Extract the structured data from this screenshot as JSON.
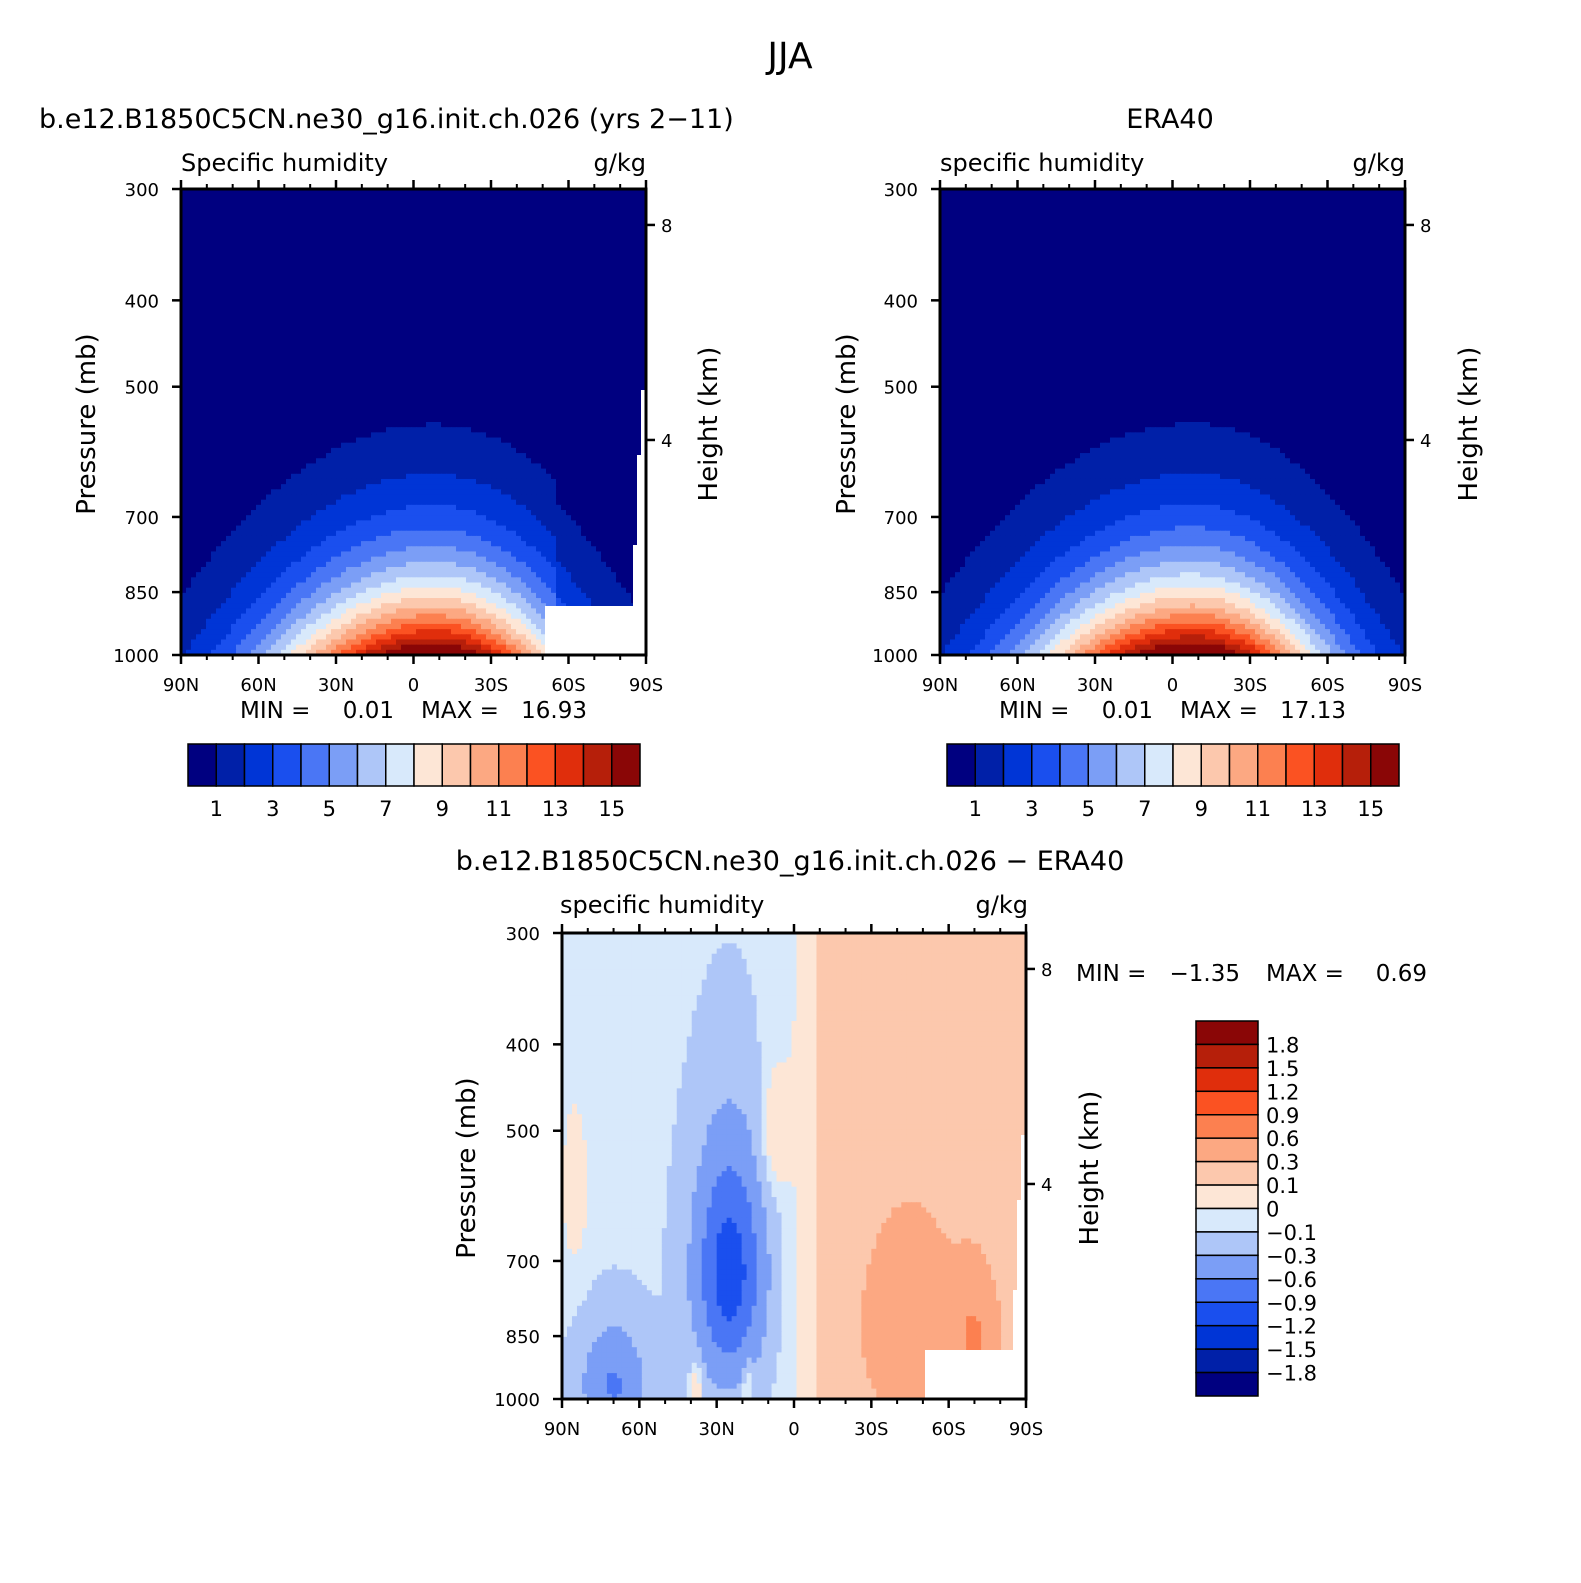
{
  "figure": {
    "title": "JJA",
    "bottom_title": "b.e12.B1850C5CN.ne30_g16.init.ch.026 − ERA40"
  },
  "palettes": {
    "abs": [
      "#000080",
      "#0020a8",
      "#0035d6",
      "#1a4fee",
      "#4a76f5",
      "#7b9ef6",
      "#aec6f8",
      "#d8e9fb",
      "#fde6d6",
      "#fcc8ad",
      "#fca882",
      "#fc8050",
      "#fb5222",
      "#e02e0c",
      "#b61f0a",
      "#8a0606"
    ],
    "diff": [
      "#000080",
      "#0020a8",
      "#0035d6",
      "#1a4fee",
      "#4a76f5",
      "#7b9ef6",
      "#aec6f8",
      "#d8e9fb",
      "#fde6d6",
      "#fcc8ad",
      "#fca882",
      "#fc8050",
      "#fb5222",
      "#e02e0c",
      "#b61f0a",
      "#8a0606"
    ]
  },
  "chart_data": [
    {
      "id": "model",
      "type": "heatmap",
      "title": "b.e12.B1850C5CN.ne30_g16.init.ch.026 (yrs 2−11)",
      "variable": "Specific humidity",
      "units": "g/kg",
      "ylabel": "Pressure (mb)",
      "y2label": "Height (km)",
      "xticks": [
        "90N",
        "60N",
        "30N",
        "0",
        "30S",
        "60S",
        "90S"
      ],
      "yticks": [
        "300",
        "400",
        "500",
        "700",
        "850",
        "1000"
      ],
      "y2ticks": [
        "8",
        "4"
      ],
      "x_range": [
        90,
        -90
      ],
      "y_range": [
        300,
        1000
      ],
      "stats": {
        "min_label": "MIN =",
        "min": "0.01",
        "max_label": "MAX =",
        "max": "16.93"
      },
      "contour_levels": [
        1,
        2,
        3,
        4,
        5,
        6,
        7,
        8,
        9,
        10,
        11,
        12,
        13,
        14,
        15
      ],
      "colorbar_labels": [
        "1",
        "3",
        "5",
        "7",
        "9",
        "11",
        "13",
        "15"
      ],
      "peak_latitude": -10,
      "peak_value": 16.93
    },
    {
      "id": "obs",
      "type": "heatmap",
      "title": "ERA40",
      "variable": "specific humidity",
      "units": "g/kg",
      "ylabel": "Pressure (mb)",
      "y2label": "Height (km)",
      "xticks": [
        "90N",
        "60N",
        "30N",
        "0",
        "30S",
        "60S",
        "90S"
      ],
      "yticks": [
        "300",
        "400",
        "500",
        "700",
        "850",
        "1000"
      ],
      "y2ticks": [
        "8",
        "4"
      ],
      "x_range": [
        90,
        -90
      ],
      "y_range": [
        300,
        1000
      ],
      "stats": {
        "min_label": "MIN =",
        "min": "0.01",
        "max_label": "MAX =",
        "max": "17.13"
      },
      "contour_levels": [
        1,
        2,
        3,
        4,
        5,
        6,
        7,
        8,
        9,
        10,
        11,
        12,
        13,
        14,
        15
      ],
      "colorbar_labels": [
        "1",
        "3",
        "5",
        "7",
        "9",
        "11",
        "13",
        "15"
      ],
      "peak_latitude": -10,
      "peak_value": 17.13
    },
    {
      "id": "diff",
      "type": "heatmap",
      "variable": "specific humidity",
      "units": "g/kg",
      "ylabel": "Pressure (mb)",
      "y2label": "Height (km)",
      "xticks": [
        "90N",
        "60N",
        "30N",
        "0",
        "30S",
        "60S",
        "90S"
      ],
      "yticks": [
        "300",
        "400",
        "500",
        "700",
        "850",
        "1000"
      ],
      "y2ticks": [
        "8",
        "4"
      ],
      "x_range": [
        90,
        -90
      ],
      "y_range": [
        300,
        1000
      ],
      "stats": {
        "min_label": "MIN =",
        "min": "−1.35",
        "max_label": "MAX =",
        "max": "0.69"
      },
      "contour_levels": [
        -1.8,
        -1.5,
        -1.2,
        -0.9,
        -0.6,
        -0.3,
        -0.1,
        0,
        0.1,
        0.3,
        0.6,
        0.9,
        1.2,
        1.5,
        1.8
      ],
      "colorbar_labels": [
        "1.8",
        "1.5",
        "1.2",
        "0.9",
        "0.6",
        "0.3",
        "0.1",
        "0",
        "−0.1",
        "−0.3",
        "−0.6",
        "−0.9",
        "−1.2",
        "−1.5",
        "−1.8"
      ]
    }
  ]
}
